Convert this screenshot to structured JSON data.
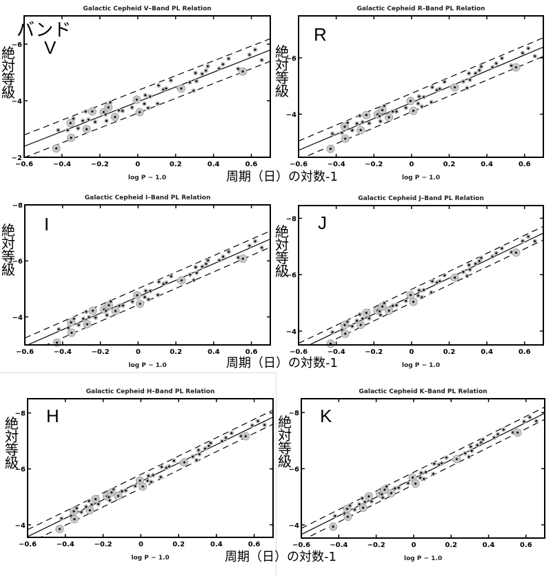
{
  "overlay": {
    "y_label": "絶対等級",
    "x_label": "周期（日）の対数-1",
    "band_prefix": "バンド"
  },
  "chart_data": {
    "type": "scatter",
    "xlabel": "log P − 1.0",
    "xlim": [
      -0.6,
      0.7
    ],
    "xticks": [
      -0.6,
      -0.4,
      -0.2,
      0,
      0.2,
      0.4,
      0.6
    ],
    "x": [
      -0.43,
      -0.42,
      -0.37,
      -0.355,
      -0.352,
      -0.34,
      -0.315,
      -0.29,
      -0.275,
      -0.27,
      -0.26,
      -0.24,
      -0.225,
      -0.18,
      -0.17,
      -0.165,
      -0.155,
      -0.145,
      -0.12,
      -0.1,
      -0.08,
      -0.03,
      -0.01,
      -0.005,
      0.01,
      0.035,
      0.04,
      0.055,
      0.065,
      0.105,
      0.11,
      0.135,
      0.15,
      0.175,
      0.215,
      0.23,
      0.275,
      0.295,
      0.305,
      0.31,
      0.34,
      0.36,
      0.37,
      0.43,
      0.45,
      0.48,
      0.53,
      0.555,
      0.59,
      0.62,
      0.655
    ],
    "residuals_V": [
      0.52,
      -0.1,
      0.03,
      -0.18,
      0.35,
      -0.3,
      0.11,
      -0.09,
      -0.38,
      0.26,
      -0.05,
      -0.29,
      0.12,
      -0.11,
      0,
      0.24,
      -0.21,
      -0.36,
      0.22,
      0.04,
      0.11,
      0.12,
      -0.15,
      -0.09,
      0.39,
      0.16,
      -0.13,
      0.36,
      -0.02,
      0.34,
      -0.29,
      -0.08,
      -0.08,
      -0.3,
      0.07,
      0.13,
      0.03,
      0.38,
      -0.22,
      0.08,
      -0.1,
      -0.16,
      -0.29,
      -0.05,
      -0.15,
      -0.27,
      0.22,
      0.38,
      -0.12,
      -0.22,
      0.24
    ],
    "circled": [
      0,
      3,
      4,
      9,
      11,
      13,
      16,
      18,
      23,
      24,
      35,
      47
    ],
    "panels": [
      {
        "title": "Galactic Cepheid V–Band PL Relation",
        "band": "V",
        "ylim": [
          -2,
          -7
        ],
        "yticks": [
          -2,
          -4,
          -6
        ],
        "fit": {
          "intercept": -3.96,
          "slope": -2.62,
          "halfwidth": 0.4
        },
        "residual_scale": 1.0
      },
      {
        "title": "Galactic Cepheid R–Band PL Relation",
        "band": "R",
        "ylim": [
          -2.47,
          -7.49
        ],
        "yticks": [
          -4,
          -6
        ],
        "fit": {
          "intercept": -4.41,
          "slope": -2.82,
          "halfwidth": 0.33
        },
        "residual_scale": 0.82
      },
      {
        "title": "Galactic Cepheid I–Band PL Relation",
        "band": "I",
        "ylim": [
          -3.0,
          -8.0
        ],
        "yticks": [
          -4,
          -6,
          -8
        ],
        "fit": {
          "intercept": -4.72,
          "slope": -2.94,
          "halfwidth": 0.29
        },
        "residual_scale": 0.72
      },
      {
        "title": "Galactic Cepheid J–Band PL Relation",
        "band": "J",
        "ylim": [
          -3.51,
          -8.45
        ],
        "yticks": [
          -4,
          -6,
          -8
        ],
        "fit": {
          "intercept": -5.24,
          "slope": -3.19,
          "halfwidth": 0.24
        },
        "residual_scale": 0.6
      },
      {
        "title": "Galactic Cepheid H–Band PL Relation",
        "band": "H",
        "ylim": [
          -3.55,
          -8.51
        ],
        "yticks": [
          -4,
          -6,
          -8
        ],
        "fit": {
          "intercept": -5.55,
          "slope": -3.29,
          "halfwidth": 0.25
        },
        "residual_scale": 0.55
      },
      {
        "title": "Galactic Cepheid K–Band PL Relation",
        "band": "K",
        "ylim": [
          -3.53,
          -8.49
        ],
        "yticks": [
          -4,
          -6,
          -8
        ],
        "fit": {
          "intercept": -5.65,
          "slope": -3.32,
          "halfwidth": 0.22
        },
        "residual_scale": 0.55
      }
    ]
  }
}
